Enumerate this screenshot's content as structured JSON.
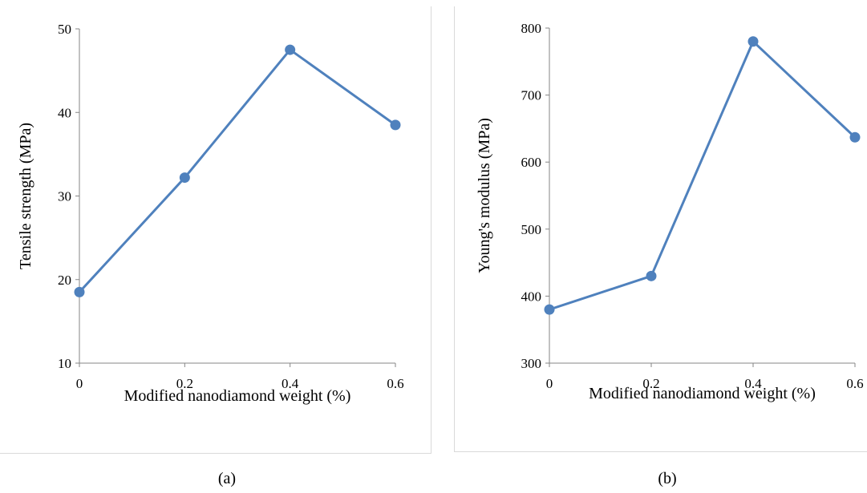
{
  "chart_data": [
    {
      "type": "line",
      "caption": "(a)",
      "xlabel": "Modified nanodiamond weight (%)",
      "ylabel": "Tensile strength (MPa)",
      "x": [
        0,
        0.2,
        0.4,
        0.6
      ],
      "x_tick_labels": [
        "0",
        "0.2",
        "0.4",
        "0.6"
      ],
      "y_tick_labels": [
        "10",
        "20",
        "30",
        "40",
        "50"
      ],
      "xlim": [
        0,
        0.6
      ],
      "ylim": [
        10,
        50
      ],
      "series": [
        {
          "values": [
            18.5,
            32.2,
            47.5,
            38.5
          ]
        }
      ],
      "grid": false,
      "line_color": "#4f81bd"
    },
    {
      "type": "line",
      "caption": "(b)",
      "xlabel": "Modified nanodiamond weight (%)",
      "ylabel": "Young's modulus (MPa)",
      "x": [
        0,
        0.2,
        0.4,
        0.6
      ],
      "x_tick_labels": [
        "0",
        "0.2",
        "0.4",
        "0.6"
      ],
      "y_tick_labels": [
        "300",
        "400",
        "500",
        "600",
        "700",
        "800"
      ],
      "xlim": [
        0,
        0.6
      ],
      "ylim": [
        300,
        800
      ],
      "series": [
        {
          "values": [
            380,
            430,
            780,
            637
          ]
        }
      ],
      "grid": false,
      "line_color": "#4f81bd"
    }
  ]
}
